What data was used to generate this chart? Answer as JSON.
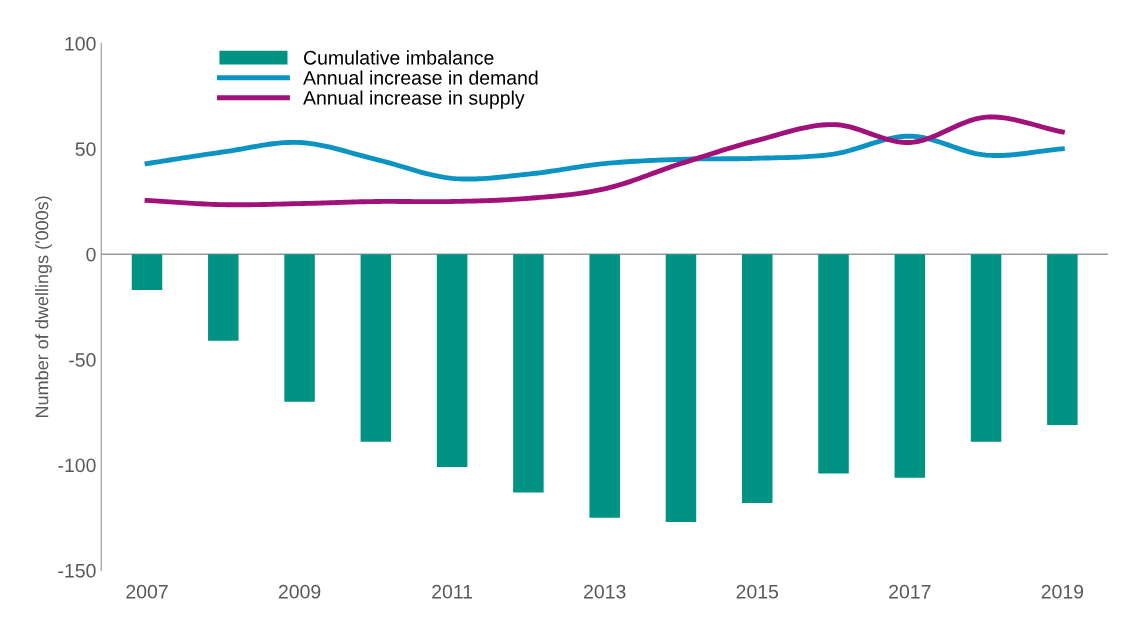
{
  "chart_data": {
    "type": "bar",
    "ylabel": "Number of dwellings ('000s)",
    "categories": [
      "2007",
      null,
      "2009",
      null,
      "2011",
      null,
      "2013",
      null,
      "2015",
      null,
      "2017",
      null,
      "2019"
    ],
    "series": [
      {
        "name": "Cumulative imbalance",
        "color": "#009384",
        "values": [
          -17,
          -41,
          -70,
          -89,
          -101,
          -113,
          -125,
          -127,
          -118,
          -104,
          -106,
          -89,
          -81
        ]
      },
      {
        "name": "Annual increase in demand",
        "type": "line",
        "color": "#0b94c2",
        "values": [
          43,
          48.5,
          53,
          45,
          36,
          38,
          43,
          45,
          45.5,
          47.5,
          56,
          47,
          50
        ]
      },
      {
        "name": "Annual increase in supply",
        "type": "line",
        "color": "#a0117a",
        "values": [
          25.5,
          23.5,
          24,
          25,
          25,
          26.5,
          31,
          43,
          54,
          61.5,
          53,
          65,
          58
        ]
      }
    ],
    "ylim": [
      -150,
      100
    ],
    "yticks": [
      -150,
      -100,
      -50,
      0,
      50,
      100
    ],
    "ref_lines": [
      {
        "axis": "y",
        "value": 0,
        "color": "#999999"
      }
    ],
    "grid": false,
    "legend": "top left"
  }
}
